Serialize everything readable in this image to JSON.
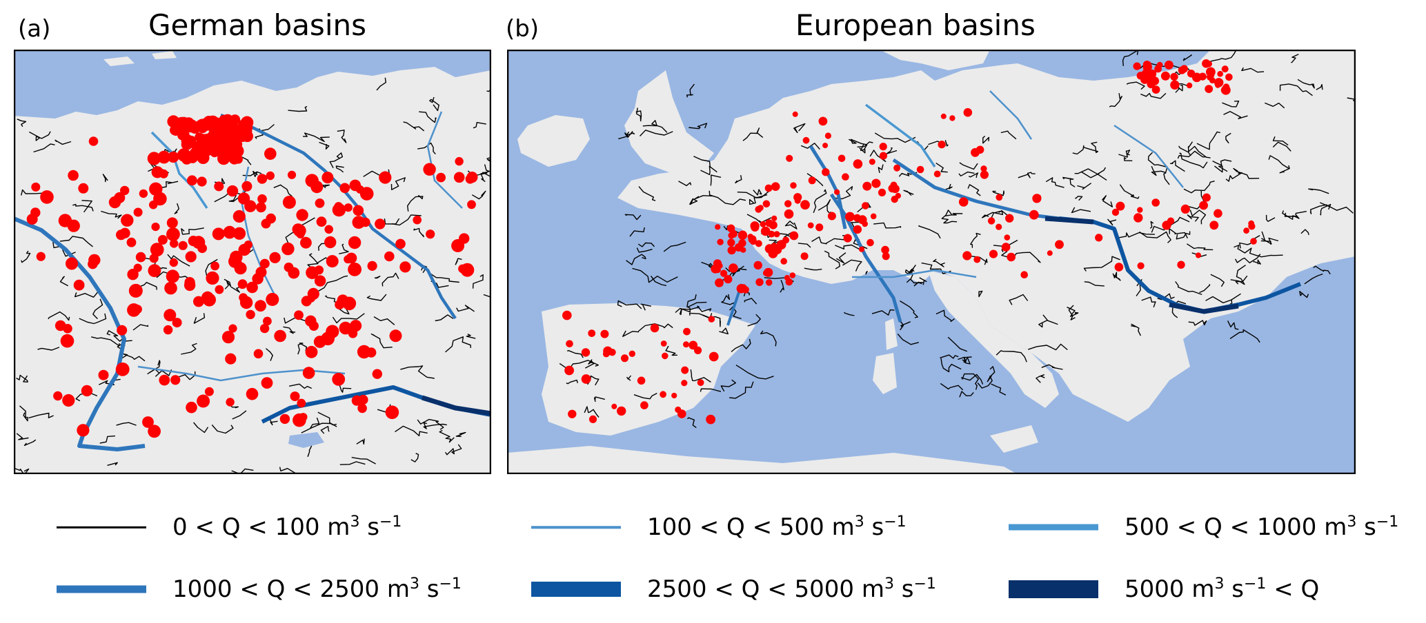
{
  "panels": [
    {
      "label": "(a)",
      "title": "German basins"
    },
    {
      "label": "(b)",
      "title": "European basins"
    }
  ],
  "colors": {
    "sea": "#9ab7e3",
    "land": "#ebebeb",
    "gauge": "#ff0000",
    "q_0_100": "#000000",
    "q_100_500": "#4d91cc",
    "q_500_1000": "#4a98d2",
    "q_1000_2500": "#2e76bc",
    "q_2500_5000": "#0d55a1",
    "q_5000_plus": "#08306b"
  },
  "legend": [
    {
      "label": "0 < Q < 100 m",
      "sup1": "3",
      "mid": " s",
      "sup2": "−1",
      "tail": "",
      "color_key": "q_0_100"
    },
    {
      "label": "100 < Q < 500 m",
      "sup1": "3",
      "mid": " s",
      "sup2": "−1",
      "tail": "",
      "color_key": "q_100_500"
    },
    {
      "label": "500 < Q < 1000 m",
      "sup1": "3",
      "mid": " s",
      "sup2": "−1",
      "tail": "",
      "color_key": "q_500_1000"
    },
    {
      "label": "1000 < Q < 2500 m",
      "sup1": "3",
      "mid": " s",
      "sup2": "−1",
      "tail": "",
      "color_key": "q_1000_2500"
    },
    {
      "label": "2500 < Q < 5000 m",
      "sup1": "3",
      "mid": " s",
      "sup2": "−1",
      "tail": "",
      "color_key": "q_2500_5000"
    },
    {
      "label": "5000 m",
      "sup1": "3",
      "mid": " s",
      "sup2": "−1",
      "tail": " < Q",
      "color_key": "q_5000_plus"
    }
  ]
}
